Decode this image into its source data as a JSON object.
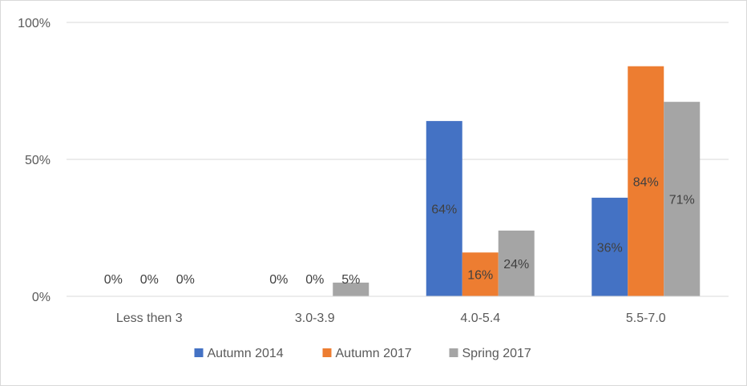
{
  "chart_data": {
    "type": "bar",
    "title": "",
    "xlabel": "",
    "ylabel": "",
    "categories": [
      "Less then 3",
      "3.0-3.9",
      "4.0-5.4",
      "5.5-7.0"
    ],
    "series": [
      {
        "name": "Autumn 2014",
        "color": "#4472c4",
        "values": [
          0,
          0,
          64,
          36
        ],
        "labels": [
          "0%",
          "0%",
          "64%",
          "36%"
        ]
      },
      {
        "name": "Autumn 2017",
        "color": "#ed7d31",
        "values": [
          0,
          0,
          16,
          84
        ],
        "labels": [
          "0%",
          "0%",
          "16%",
          "84%"
        ]
      },
      {
        "name": "Spring 2017",
        "color": "#a5a5a5",
        "values": [
          0,
          5,
          24,
          71
        ],
        "labels": [
          "0%",
          "5%",
          "24%",
          "71%"
        ]
      }
    ],
    "ylim": [
      0,
      100
    ],
    "yticks": [
      0,
      50,
      100
    ],
    "ytick_labels": [
      "0%",
      "50%",
      "100%"
    ],
    "grid": true,
    "legend_position": "bottom"
  }
}
